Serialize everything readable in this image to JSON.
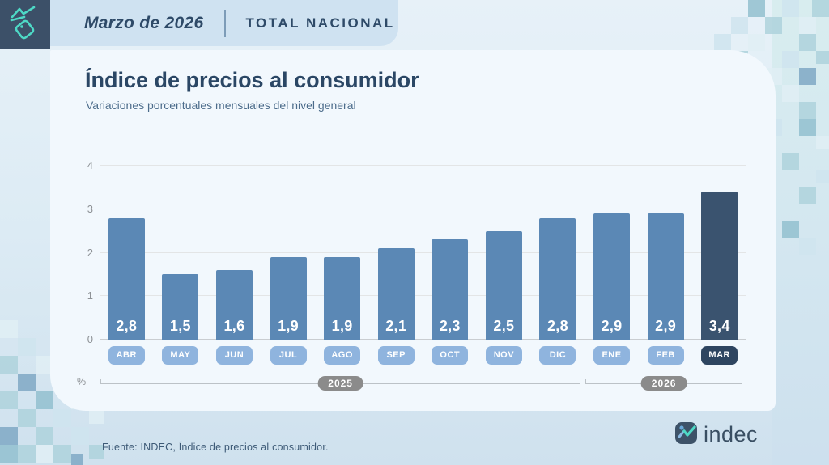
{
  "header": {
    "period": "Marzo de 2026",
    "scope": "TOTAL NACIONAL"
  },
  "title": "Índice de precios al consumidor",
  "subtitle": "Variaciones porcentuales mensuales del nivel general",
  "chart_data": {
    "type": "bar",
    "categories": [
      "ABR",
      "MAY",
      "JUN",
      "JUL",
      "AGO",
      "SEP",
      "OCT",
      "NOV",
      "DIC",
      "ENE",
      "FEB",
      "MAR"
    ],
    "values": [
      2.8,
      1.5,
      1.6,
      1.9,
      1.9,
      2.1,
      2.3,
      2.5,
      2.8,
      2.9,
      2.9,
      3.4
    ],
    "value_labels": [
      "2,8",
      "1,5",
      "1,6",
      "1,9",
      "1,9",
      "2,1",
      "2,3",
      "2,5",
      "2,8",
      "2,9",
      "2,9",
      "3,4"
    ],
    "highlight_index": 11,
    "ylabel": "%",
    "yticks": [
      0,
      1,
      2,
      3,
      4
    ],
    "ylim": [
      0,
      4
    ],
    "grid": true,
    "year_groups": [
      {
        "label": "2025",
        "from": 0,
        "to": 8
      },
      {
        "label": "2026",
        "from": 9,
        "to": 11
      }
    ],
    "colors": {
      "bar": "#5b88b5",
      "bar_highlight": "#3a536f",
      "month_pill": "#8fb4de",
      "month_pill_highlight": "#2e4560",
      "year_pill": "#8b8b8b"
    }
  },
  "footer": {
    "source": "Fuente: INDEC, Índice de precios al consumidor.",
    "logo_text": "indec"
  }
}
